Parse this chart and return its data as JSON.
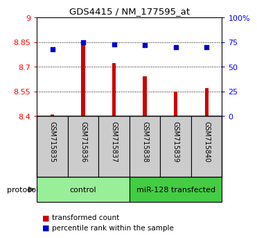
{
  "title": "GDS4415 / NM_177595_at",
  "samples": [
    "GSM715835",
    "GSM715836",
    "GSM715837",
    "GSM715838",
    "GSM715839",
    "GSM715840"
  ],
  "transformed_count": [
    8.41,
    8.85,
    8.72,
    8.64,
    8.55,
    8.57
  ],
  "percentile_rank": [
    68,
    75,
    73,
    72,
    70,
    70
  ],
  "ylim_left": [
    8.4,
    9.0
  ],
  "ylim_right": [
    0,
    100
  ],
  "yticks_left": [
    8.4,
    8.55,
    8.7,
    8.85,
    9.0
  ],
  "ytick_labels_left": [
    "8.4",
    "8.55",
    "8.7",
    "8.85",
    "9"
  ],
  "yticks_right": [
    0,
    25,
    50,
    75,
    100
  ],
  "ytick_labels_right": [
    "0",
    "25",
    "50",
    "75",
    "100%"
  ],
  "bar_color": "#cc0000",
  "dot_color": "#0000cc",
  "groups": [
    {
      "name": "control",
      "indices": [
        0,
        1,
        2
      ],
      "color": "#99ee99"
    },
    {
      "name": "miR-128 transfected",
      "indices": [
        3,
        4,
        5
      ],
      "color": "#44cc44"
    }
  ],
  "legend_labels": [
    "transformed count",
    "percentile rank within the sample"
  ],
  "protocol_label": "protocol",
  "background_color": "#ffffff",
  "plot_bg_color": "#ffffff",
  "grid_color": "#000000",
  "bar_bottom": 8.4,
  "sample_area_color": "#cccccc",
  "bar_width": 0.12
}
